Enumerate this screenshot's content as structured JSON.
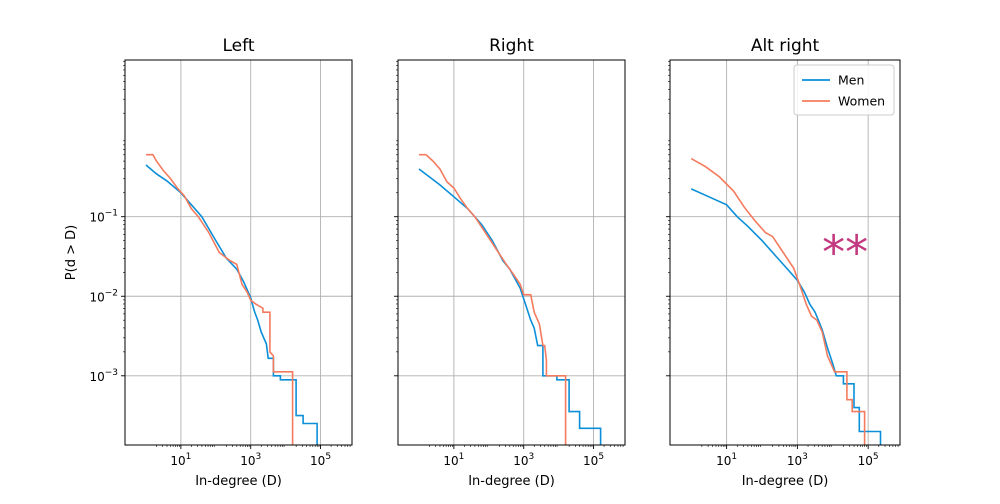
{
  "chart_data": {
    "type": "line",
    "shared": {
      "xlabel": "In-degree (D)",
      "ylabel": "P(d > D)",
      "xscale": "log",
      "yscale": "log",
      "xlim_exponent": [
        -0.6,
        5.9
      ],
      "ylim_exponent": [
        -3.87,
        0.97
      ],
      "x_tick_labels": [
        "10^1",
        "10^3",
        "10^5"
      ],
      "x_tick_exponents": [
        1,
        3,
        5
      ],
      "x_grid_exponents": [
        1,
        3,
        5
      ],
      "y_tick_labels": [
        "10^-1",
        "10^-2",
        "10^-3"
      ],
      "y_tick_exponents": [
        -1,
        -2,
        -3
      ],
      "grid": true,
      "colors": {
        "Men": "#0a8fd8",
        "Women": "#f47b5e"
      }
    },
    "panels": [
      {
        "title": "Left",
        "series": [
          {
            "name": "Men",
            "points": [
              [
                0,
                -0.35
              ],
              [
                0.3,
                -0.46
              ],
              [
                0.6,
                -0.55
              ],
              [
                1,
                -0.7
              ],
              [
                1.3,
                -0.85
              ],
              [
                1.6,
                -1
              ],
              [
                2,
                -1.3
              ],
              [
                2.3,
                -1.52
              ],
              [
                2.6,
                -1.66
              ],
              [
                2.8,
                -1.82
              ],
              [
                3,
                -2.02
              ],
              [
                3.1,
                -2.18
              ],
              [
                3.2,
                -2.3
              ],
              [
                3.3,
                -2.45
              ],
              [
                3.45,
                -2.6
              ],
              [
                3.5,
                -2.78
              ],
              [
                3.65,
                -2.78
              ],
              [
                3.65,
                -3.0
              ],
              [
                3.85,
                -3.0
              ],
              [
                3.85,
                -3.05
              ],
              [
                4.3,
                -3.05
              ],
              [
                4.3,
                -3.5
              ],
              [
                4.5,
                -3.5
              ],
              [
                4.5,
                -3.6
              ],
              [
                4.9,
                -3.6
              ],
              [
                4.9,
                -3.87
              ]
            ]
          },
          {
            "name": "Women",
            "points": [
              [
                0,
                -0.22
              ],
              [
                0.2,
                -0.22
              ],
              [
                0.3,
                -0.3
              ],
              [
                0.5,
                -0.42
              ],
              [
                0.7,
                -0.52
              ],
              [
                0.9,
                -0.64
              ],
              [
                1.1,
                -0.74
              ],
              [
                1.3,
                -0.9
              ],
              [
                1.5,
                -1.0
              ],
              [
                1.8,
                -1.2
              ],
              [
                2.1,
                -1.45
              ],
              [
                2.4,
                -1.55
              ],
              [
                2.6,
                -1.6
              ],
              [
                2.75,
                -1.85
              ],
              [
                2.9,
                -1.95
              ],
              [
                3.0,
                -2.05
              ],
              [
                3.15,
                -2.1
              ],
              [
                3.35,
                -2.15
              ],
              [
                3.35,
                -2.2
              ],
              [
                3.55,
                -2.2
              ],
              [
                3.55,
                -2.7
              ],
              [
                3.65,
                -2.75
              ],
              [
                3.65,
                -2.95
              ],
              [
                4.2,
                -2.95
              ],
              [
                4.2,
                -3.87
              ]
            ]
          }
        ]
      },
      {
        "title": "Right",
        "series": [
          {
            "name": "Men",
            "points": [
              [
                0,
                -0.4
              ],
              [
                0.3,
                -0.5
              ],
              [
                0.6,
                -0.6
              ],
              [
                1,
                -0.75
              ],
              [
                1.4,
                -0.9
              ],
              [
                1.8,
                -1.1
              ],
              [
                2.1,
                -1.3
              ],
              [
                2.4,
                -1.55
              ],
              [
                2.6,
                -1.66
              ],
              [
                2.9,
                -1.9
              ],
              [
                3.05,
                -2.1
              ],
              [
                3.2,
                -2.3
              ],
              [
                3.3,
                -2.4
              ],
              [
                3.4,
                -2.62
              ],
              [
                3.55,
                -2.62
              ],
              [
                3.55,
                -3.0
              ],
              [
                3.95,
                -3.0
              ],
              [
                3.95,
                -3.05
              ],
              [
                4.3,
                -3.05
              ],
              [
                4.3,
                -3.45
              ],
              [
                4.6,
                -3.45
              ],
              [
                4.6,
                -3.66
              ],
              [
                5.2,
                -3.66
              ],
              [
                5.2,
                -3.87
              ]
            ]
          },
          {
            "name": "Women",
            "points": [
              [
                0,
                -0.22
              ],
              [
                0.2,
                -0.22
              ],
              [
                0.4,
                -0.3
              ],
              [
                0.6,
                -0.4
              ],
              [
                0.8,
                -0.56
              ],
              [
                1,
                -0.64
              ],
              [
                1.2,
                -0.78
              ],
              [
                1.4,
                -0.9
              ],
              [
                1.6,
                -1.0
              ],
              [
                1.9,
                -1.2
              ],
              [
                2.2,
                -1.4
              ],
              [
                2.5,
                -1.6
              ],
              [
                2.7,
                -1.72
              ],
              [
                2.9,
                -1.85
              ],
              [
                3.0,
                -1.98
              ],
              [
                3.2,
                -1.98
              ],
              [
                3.3,
                -2.2
              ],
              [
                3.45,
                -2.35
              ],
              [
                3.55,
                -2.62
              ],
              [
                3.6,
                -2.62
              ],
              [
                3.65,
                -2.8
              ],
              [
                3.65,
                -3.0
              ],
              [
                4.2,
                -3.0
              ],
              [
                4.2,
                -3.87
              ]
            ]
          }
        ]
      },
      {
        "title": "Alt right",
        "series": [
          {
            "name": "Men",
            "points": [
              [
                0,
                -0.65
              ],
              [
                0.5,
                -0.75
              ],
              [
                1,
                -0.85
              ],
              [
                1.3,
                -1.0
              ],
              [
                1.6,
                -1.12
              ],
              [
                2,
                -1.3
              ],
              [
                2.4,
                -1.5
              ],
              [
                2.7,
                -1.65
              ],
              [
                3,
                -1.8
              ],
              [
                3.2,
                -1.95
              ],
              [
                3.35,
                -2.1
              ],
              [
                3.5,
                -2.2
              ],
              [
                3.7,
                -2.42
              ],
              [
                3.85,
                -2.65
              ],
              [
                4.0,
                -2.85
              ],
              [
                4.1,
                -3.0
              ],
              [
                4.3,
                -3.0
              ],
              [
                4.3,
                -3.1
              ],
              [
                4.6,
                -3.1
              ],
              [
                4.6,
                -3.4
              ],
              [
                4.75,
                -3.4
              ],
              [
                4.75,
                -3.7
              ],
              [
                5.35,
                -3.7
              ],
              [
                5.35,
                -3.87
              ]
            ]
          },
          {
            "name": "Women",
            "points": [
              [
                0,
                -0.27
              ],
              [
                0.4,
                -0.37
              ],
              [
                0.8,
                -0.5
              ],
              [
                1.2,
                -0.68
              ],
              [
                1.5,
                -0.88
              ],
              [
                1.8,
                -1.05
              ],
              [
                2.1,
                -1.2
              ],
              [
                2.3,
                -1.25
              ],
              [
                2.6,
                -1.45
              ],
              [
                2.9,
                -1.65
              ],
              [
                3.1,
                -1.9
              ],
              [
                3.25,
                -2.1
              ],
              [
                3.4,
                -2.25
              ],
              [
                3.55,
                -2.3
              ],
              [
                3.7,
                -2.45
              ],
              [
                3.85,
                -2.75
              ],
              [
                4.0,
                -2.9
              ],
              [
                4.05,
                -2.95
              ],
              [
                4.4,
                -2.95
              ],
              [
                4.4,
                -3.3
              ],
              [
                4.55,
                -3.3
              ],
              [
                4.55,
                -3.45
              ],
              [
                4.9,
                -3.45
              ],
              [
                4.9,
                -3.87
              ]
            ]
          }
        ]
      }
    ],
    "legend": {
      "panel": "Alt right",
      "placement": "top-right",
      "entries": [
        "Men",
        "Women"
      ]
    },
    "annotation": {
      "panel": "Alt right",
      "text": "**",
      "color": "#c2397f"
    }
  }
}
